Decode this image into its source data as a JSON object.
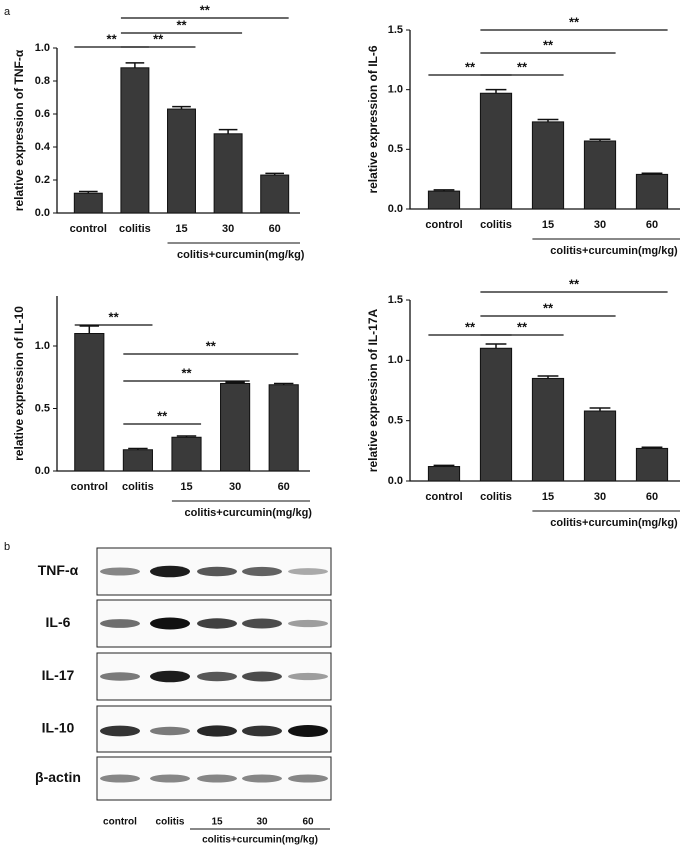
{
  "panels": {
    "a": "a",
    "b": "b"
  },
  "chart_data": [
    {
      "type": "bar",
      "y_label": "relative expression of TNF-α",
      "categories": [
        "control",
        "colitis",
        "15",
        "30",
        "60"
      ],
      "group_label": "colitis+curcumin(mg/kg)",
      "values": [
        0.12,
        0.88,
        0.63,
        0.48,
        0.23
      ],
      "errors": [
        0.01,
        0.03,
        0.015,
        0.025,
        0.01
      ],
      "color": "#3a3a3a",
      "ylim": [
        0,
        1.0
      ],
      "yticks": [
        {
          "value": 0,
          "label": "0.0"
        },
        0.2,
        0.4,
        0.6,
        0.8,
        {
          "value": 1.0,
          "label": "1.0"
        }
      ],
      "annotations": [
        "**",
        "**",
        "**",
        "**"
      ]
    },
    {
      "type": "bar",
      "y_label": "relative expression of IL-6",
      "categories": [
        "control",
        "colitis",
        "15",
        "30",
        "60"
      ],
      "group_label": "colitis+curcumin(mg/kg)",
      "values": [
        0.15,
        0.97,
        0.73,
        0.57,
        0.29
      ],
      "errors": [
        0.01,
        0.03,
        0.02,
        0.015,
        0.01
      ],
      "color": "#3a3a3a",
      "ylim": [
        0,
        1.5
      ],
      "yticks": [
        {
          "value": 0,
          "label": "0.0"
        },
        0.5,
        {
          "value": 1.0,
          "label": "1.0"
        },
        1.5
      ],
      "annotations": [
        "**",
        "**",
        "**",
        "**"
      ]
    },
    {
      "type": "bar",
      "y_label": "relative expression of IL-10",
      "categories": [
        "control",
        "colitis",
        "15",
        "30",
        "60"
      ],
      "group_label": "colitis+curcumin(mg/kg)",
      "values": [
        1.1,
        0.17,
        0.27,
        0.7,
        0.69
      ],
      "errors": [
        0.06,
        0.01,
        0.01,
        0.01,
        0.01
      ],
      "color": "#3a3a3a",
      "ylim": [
        0,
        1.4
      ],
      "yticks": [
        {
          "value": 0,
          "label": "0.0"
        },
        0.5,
        {
          "value": 1.0,
          "label": "1.0"
        }
      ],
      "annotations": [
        "**",
        "**",
        "**",
        "**"
      ]
    },
    {
      "type": "bar",
      "y_label": "relative expression of IL-17A",
      "categories": [
        "control",
        "colitis",
        "15",
        "30",
        "60"
      ],
      "group_label": "colitis+curcumin(mg/kg)",
      "values": [
        0.12,
        1.1,
        0.85,
        0.58,
        0.27
      ],
      "errors": [
        0.01,
        0.035,
        0.02,
        0.025,
        0.01
      ],
      "color": "#3a3a3a",
      "ylim": [
        0,
        1.5
      ],
      "yticks": [
        {
          "value": 0,
          "label": "0.0"
        },
        0.5,
        {
          "value": 1.0,
          "label": "1.0"
        },
        1.5
      ],
      "annotations": [
        "**",
        "**",
        "**",
        "**"
      ]
    }
  ],
  "blot": {
    "rows": [
      "TNF-α",
      "IL-6",
      "IL-17",
      "IL-10",
      "β-actin"
    ],
    "lanes": [
      "control",
      "colitis",
      "15",
      "30",
      "60"
    ],
    "group_label": "colitis+curcumin(mg/kg)"
  }
}
